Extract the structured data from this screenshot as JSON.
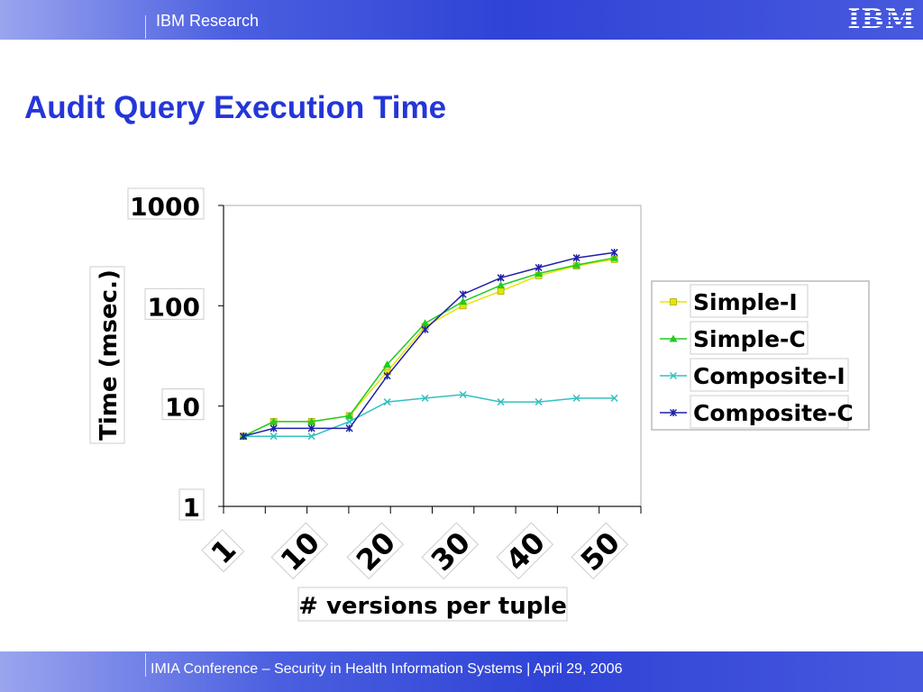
{
  "header": {
    "brand": "IBM Research",
    "logo": "IBM"
  },
  "page": {
    "title": "Audit Query Execution Time"
  },
  "footer": {
    "text": "IMIA Conference – Security in Health Information Systems | April 29, 2006"
  },
  "chart_data": {
    "type": "line",
    "title": "",
    "xlabel": "# versions per tuple",
    "ylabel": "Time (msec.)",
    "y_scale": "log",
    "ylim": [
      1,
      1000
    ],
    "y_ticks": [
      "1",
      "10",
      "100",
      "1000"
    ],
    "x_tick_labels": [
      "1",
      "10",
      "20",
      "30",
      "40",
      "50"
    ],
    "x": [
      1,
      5,
      10,
      15,
      20,
      25,
      30,
      35,
      40,
      45,
      50
    ],
    "grid": false,
    "legend_position": "right",
    "series": [
      {
        "name": "Simple-I",
        "color": "#e6e600",
        "marker": "square",
        "values": [
          5,
          7,
          7,
          8,
          22,
          62,
          100,
          140,
          200,
          250,
          290
        ]
      },
      {
        "name": "Simple-C",
        "color": "#22cc22",
        "marker": "triangle",
        "values": [
          5,
          7,
          7,
          8,
          26,
          67,
          110,
          160,
          210,
          255,
          300
        ]
      },
      {
        "name": "Composite-I",
        "color": "#33c0c0",
        "marker": "x",
        "values": [
          5,
          5,
          5,
          7,
          11,
          12,
          13,
          11,
          11,
          12,
          12
        ]
      },
      {
        "name": "Composite-C",
        "color": "#1f1fa8",
        "marker": "star",
        "values": [
          5,
          6,
          6,
          6,
          20,
          58,
          130,
          190,
          240,
          300,
          340
        ]
      }
    ]
  }
}
